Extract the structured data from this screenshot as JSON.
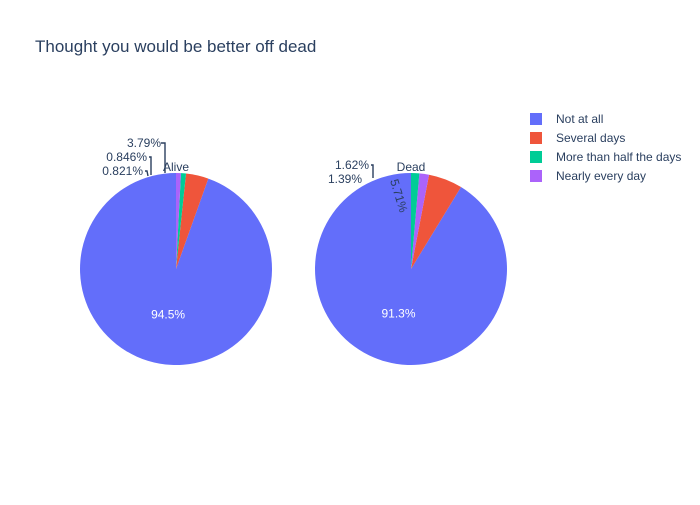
{
  "chart_data": {
    "type": "pie",
    "title": "Thought you would be better off dead",
    "legend_position": "top-right",
    "categories": [
      "Not at all",
      "Several days",
      "More than half the days",
      "Nearly every day"
    ],
    "colors": {
      "Not at all": "#636efa",
      "Several days": "#EF553B",
      "More than half the days": "#00cc96",
      "Nearly every day": "#ab63fa"
    },
    "pies": [
      {
        "name": "Alive",
        "slices": [
          {
            "label": "Not at all",
            "value": 94.5,
            "text": "94.5%"
          },
          {
            "label": "Several days",
            "value": 3.79,
            "text": "3.79%"
          },
          {
            "label": "More than half the days",
            "value": 0.846,
            "text": "0.846%"
          },
          {
            "label": "Nearly every day",
            "value": 0.821,
            "text": "0.821%"
          }
        ]
      },
      {
        "name": "Dead",
        "slices": [
          {
            "label": "Not at all",
            "value": 91.3,
            "text": "91.3%"
          },
          {
            "label": "Several days",
            "value": 5.71,
            "text": "5.71%"
          },
          {
            "label": "Nearly every day",
            "value": 1.62,
            "text": "1.62%"
          },
          {
            "label": "More than half the days",
            "value": 1.39,
            "text": "1.39%"
          }
        ]
      }
    ]
  }
}
